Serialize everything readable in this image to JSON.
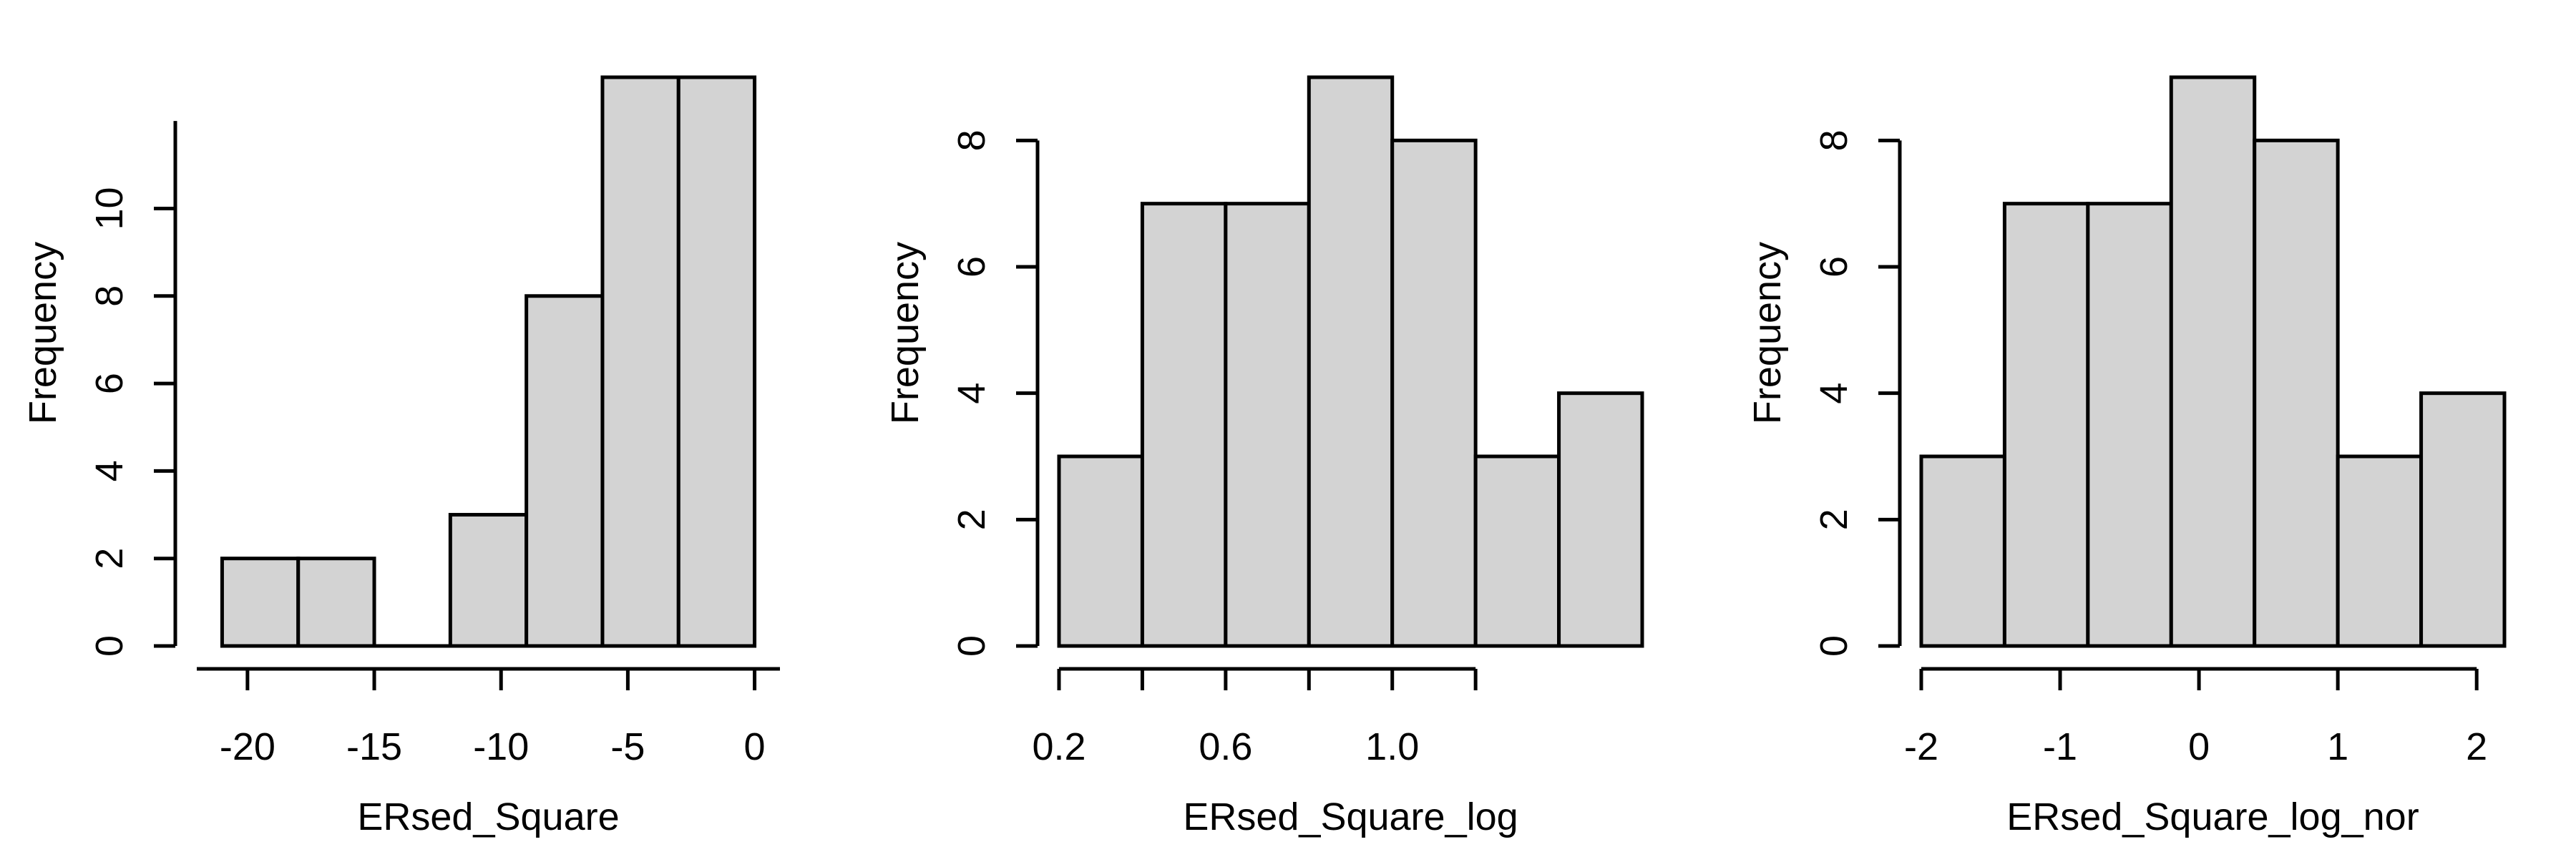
{
  "colors": {
    "bar_fill": "#d3d3d3",
    "stroke": "#000000",
    "background": "#ffffff"
  },
  "chart_data": [
    {
      "type": "bar",
      "title": "",
      "xlabel": "ERsed_Square",
      "ylabel": "Frequency",
      "bins": [
        {
          "from": -21.0,
          "to": -18.0,
          "count": 2
        },
        {
          "from": -18.0,
          "to": -15.0,
          "count": 2
        },
        {
          "from": -15.0,
          "to": -12.0,
          "count": 0
        },
        {
          "from": -12.0,
          "to": -9.0,
          "count": 3
        },
        {
          "from": -9.0,
          "to": -6.0,
          "count": 8
        },
        {
          "from": -6.0,
          "to": -3.0,
          "count": 13
        },
        {
          "from": -3.0,
          "to": 0.0,
          "count": 13
        }
      ],
      "xlim": [
        -22.0,
        1.0
      ],
      "ylim": [
        0,
        13
      ],
      "xticks": [
        -20,
        -15,
        -10,
        -5,
        0
      ],
      "xtick_labels": [
        "-20",
        "-15",
        "-10",
        "-5",
        "0"
      ],
      "yticks": [
        0,
        2,
        4,
        6,
        8,
        10
      ],
      "ytick_labels": [
        "0",
        "2",
        "4",
        "6",
        "8",
        "10"
      ],
      "xaxis_range": [
        -22.0,
        1.0
      ],
      "yaxis_range": [
        0,
        12
      ],
      "grid": false
    },
    {
      "type": "bar",
      "title": "",
      "xlabel": "ERsed_Square_log",
      "ylabel": "Frequency",
      "bins": [
        {
          "from": 0.2,
          "to": 0.4,
          "count": 3
        },
        {
          "from": 0.4,
          "to": 0.6,
          "count": 7
        },
        {
          "from": 0.6,
          "to": 0.8,
          "count": 7
        },
        {
          "from": 0.8,
          "to": 1.0,
          "count": 9
        },
        {
          "from": 1.0,
          "to": 1.2,
          "count": 8
        },
        {
          "from": 1.2,
          "to": 1.4,
          "count": 3
        },
        {
          "from": 1.4,
          "to": 1.6,
          "count": 4
        }
      ],
      "xlim": [
        0.2,
        1.6
      ],
      "ylim": [
        0,
        9
      ],
      "xticks": [
        0.2,
        0.4,
        0.6,
        0.8,
        1.0,
        1.2
      ],
      "xtick_labels": [
        "0.2",
        "",
        "0.6",
        "",
        "1.0",
        ""
      ],
      "yticks": [
        0,
        2,
        4,
        6,
        8
      ],
      "ytick_labels": [
        "0",
        "2",
        "4",
        "6",
        "8"
      ],
      "xaxis_range": [
        0.2,
        1.2
      ],
      "yaxis_range": [
        0,
        8
      ],
      "grid": false
    },
    {
      "type": "bar",
      "title": "",
      "xlabel": "ERsed_Square_log_nor",
      "ylabel": "Frequency",
      "bins": [
        {
          "from": -2.0,
          "to": -1.4,
          "count": 3
        },
        {
          "from": -1.4,
          "to": -0.8,
          "count": 7
        },
        {
          "from": -0.8,
          "to": -0.2,
          "count": 7
        },
        {
          "from": -0.2,
          "to": 0.4,
          "count": 9
        },
        {
          "from": 0.4,
          "to": 1.0,
          "count": 8
        },
        {
          "from": 1.0,
          "to": 1.6,
          "count": 3
        },
        {
          "from": 1.6,
          "to": 2.2,
          "count": 4
        }
      ],
      "xlim": [
        -2.0,
        2.2
      ],
      "ylim": [
        0,
        9
      ],
      "xticks": [
        -2,
        -1,
        0,
        1,
        2
      ],
      "xtick_labels": [
        "-2",
        "-1",
        "0",
        "1",
        "2"
      ],
      "yticks": [
        0,
        2,
        4,
        6,
        8
      ],
      "ytick_labels": [
        "0",
        "2",
        "4",
        "6",
        "8"
      ],
      "xaxis_range": [
        -2.0,
        2.0
      ],
      "yaxis_range": [
        0,
        8
      ],
      "grid": false
    }
  ]
}
